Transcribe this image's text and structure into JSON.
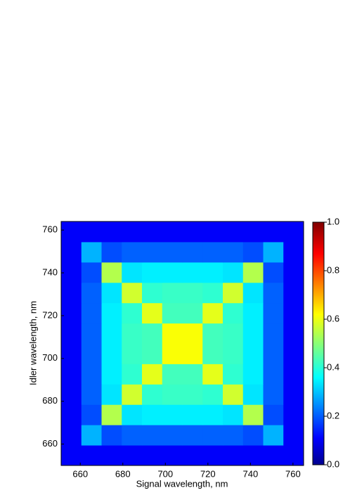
{
  "chart_data": {
    "type": "heatmap",
    "x_label": "Signal wavelength, nm",
    "y_label": "Idler wavelength, nm",
    "x": [
      655.75,
      665.25,
      674.75,
      684.25,
      693.75,
      703.25,
      712.75,
      722.25,
      731.75,
      741.25,
      750.75,
      760.25
    ],
    "y": [
      654.75,
      664.25,
      673.75,
      683.25,
      692.75,
      702.25,
      711.75,
      721.25,
      730.75,
      740.25,
      749.75,
      759.25
    ],
    "z": [
      [
        0.12,
        0.12,
        0.12,
        0.12,
        0.12,
        0.12,
        0.12,
        0.12,
        0.12,
        0.12,
        0.12,
        0.12
      ],
      [
        0.12,
        0.3,
        0.2,
        0.22,
        0.22,
        0.22,
        0.22,
        0.22,
        0.22,
        0.2,
        0.3,
        0.12
      ],
      [
        0.12,
        0.2,
        0.55,
        0.35,
        0.36,
        0.36,
        0.36,
        0.36,
        0.35,
        0.55,
        0.2,
        0.12
      ],
      [
        0.12,
        0.22,
        0.35,
        0.58,
        0.42,
        0.43,
        0.43,
        0.42,
        0.58,
        0.35,
        0.22,
        0.12
      ],
      [
        0.12,
        0.22,
        0.36,
        0.42,
        0.6,
        0.44,
        0.44,
        0.6,
        0.42,
        0.36,
        0.22,
        0.12
      ],
      [
        0.12,
        0.22,
        0.36,
        0.43,
        0.44,
        0.62,
        0.62,
        0.44,
        0.43,
        0.36,
        0.22,
        0.12
      ],
      [
        0.12,
        0.22,
        0.36,
        0.43,
        0.44,
        0.62,
        0.62,
        0.44,
        0.43,
        0.36,
        0.22,
        0.12
      ],
      [
        0.12,
        0.22,
        0.36,
        0.42,
        0.6,
        0.44,
        0.44,
        0.6,
        0.42,
        0.36,
        0.22,
        0.12
      ],
      [
        0.12,
        0.22,
        0.35,
        0.58,
        0.42,
        0.43,
        0.43,
        0.42,
        0.58,
        0.35,
        0.22,
        0.12
      ],
      [
        0.12,
        0.2,
        0.55,
        0.35,
        0.36,
        0.36,
        0.36,
        0.36,
        0.35,
        0.55,
        0.2,
        0.12
      ],
      [
        0.12,
        0.3,
        0.2,
        0.22,
        0.22,
        0.22,
        0.22,
        0.22,
        0.22,
        0.2,
        0.3,
        0.12
      ],
      [
        0.12,
        0.12,
        0.12,
        0.12,
        0.12,
        0.12,
        0.12,
        0.12,
        0.12,
        0.12,
        0.12,
        0.12
      ]
    ],
    "xlim": [
      651,
      765
    ],
    "xticks": [
      660,
      680,
      700,
      720,
      740,
      760
    ],
    "ylim": [
      650,
      764
    ],
    "yticks": [
      660,
      680,
      700,
      720,
      740,
      760
    ],
    "zlim": [
      0,
      1
    ],
    "zticks": [
      {
        "value": 0,
        "label": "0.0"
      },
      0.2,
      0.4,
      0.6,
      0.8,
      {
        "value": 1,
        "label": "1.0"
      }
    ],
    "colormap": "jet"
  }
}
